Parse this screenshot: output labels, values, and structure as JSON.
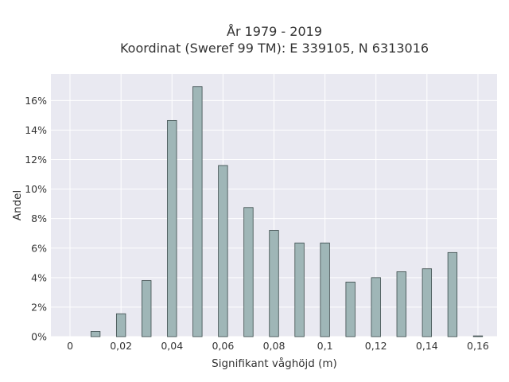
{
  "chart_data": {
    "type": "bar",
    "title_line1": "År 1979 - 2019",
    "title_line2": "Koordinat (Sweref 99 TM): E 339105, N 6313016",
    "xlabel": "Signifikant våghöjd (m)",
    "ylabel": "Andel",
    "x": [
      0.01,
      0.02,
      0.03,
      0.04,
      0.05,
      0.06,
      0.07,
      0.08,
      0.09,
      0.1,
      0.11,
      0.12,
      0.13,
      0.14,
      0.15,
      0.16
    ],
    "values": [
      0.35,
      1.55,
      3.8,
      14.65,
      16.95,
      11.6,
      8.75,
      7.2,
      6.35,
      6.35,
      3.7,
      4.0,
      4.4,
      4.6,
      5.7,
      0.05
    ],
    "xlim": [
      -0.0075,
      0.1675
    ],
    "ylim": [
      0,
      17.8
    ],
    "x_ticks": [
      0,
      0.02,
      0.04,
      0.06,
      0.08,
      0.1,
      0.12,
      0.14,
      0.16
    ],
    "x_tick_labels": [
      "0",
      "0,02",
      "0,04",
      "0,06",
      "0,08",
      "0,1",
      "0,12",
      "0,14",
      "0,16"
    ],
    "y_ticks": [
      0,
      2,
      4,
      6,
      8,
      10,
      12,
      14,
      16
    ],
    "y_tick_labels": [
      "0%",
      "2%",
      "4%",
      "6%",
      "8%",
      "10%",
      "12%",
      "14%",
      "16%"
    ],
    "grid": true,
    "colors": {
      "bar_fill": "#9fb6b7",
      "bar_stroke": "#3a4a4a",
      "plot_bg": "#e9e9f1",
      "grid": "#ffffff"
    }
  }
}
